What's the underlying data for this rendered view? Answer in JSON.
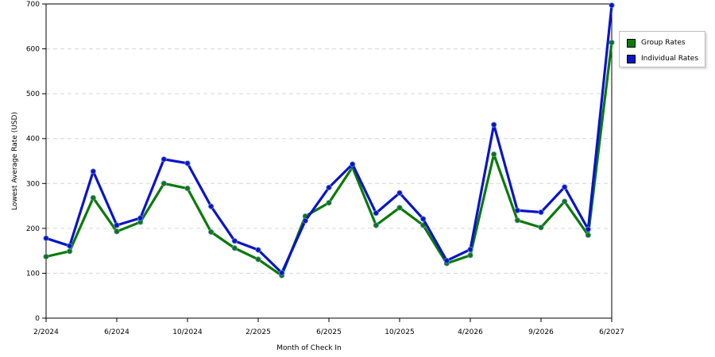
{
  "chart_data": {
    "type": "line",
    "title": "",
    "xlabel": "Month of Check In",
    "ylabel": "Lowest Average Rate (USD)",
    "ylim": [
      0,
      700
    ],
    "yticks": [
      0,
      100,
      200,
      300,
      400,
      500,
      600,
      700
    ],
    "x_tick_labels": [
      "2/2024",
      "6/2024",
      "10/2024",
      "2/2025",
      "6/2025",
      "10/2025",
      "4/2026",
      "9/2026",
      "6/2027"
    ],
    "x_tick_indices": [
      0,
      3,
      6,
      9,
      12,
      15,
      18,
      21,
      24
    ],
    "point_count": 25,
    "grid": "horizontal-dashed",
    "legend_position": "right",
    "series": [
      {
        "name": "Group Rates",
        "color": "#0a7a0a",
        "values": [
          137,
          149,
          268,
          193,
          214,
          300,
          289,
          192,
          156,
          131,
          95,
          227,
          257,
          336,
          207,
          246,
          207,
          122,
          140,
          365,
          218,
          202,
          260,
          185,
          614
        ]
      },
      {
        "name": "Individual Rates",
        "color": "#0a14c8",
        "values": [
          178,
          161,
          327,
          207,
          223,
          354,
          345,
          249,
          172,
          152,
          101,
          217,
          291,
          343,
          234,
          279,
          221,
          128,
          153,
          431,
          240,
          236,
          292,
          198,
          697
        ]
      }
    ]
  }
}
